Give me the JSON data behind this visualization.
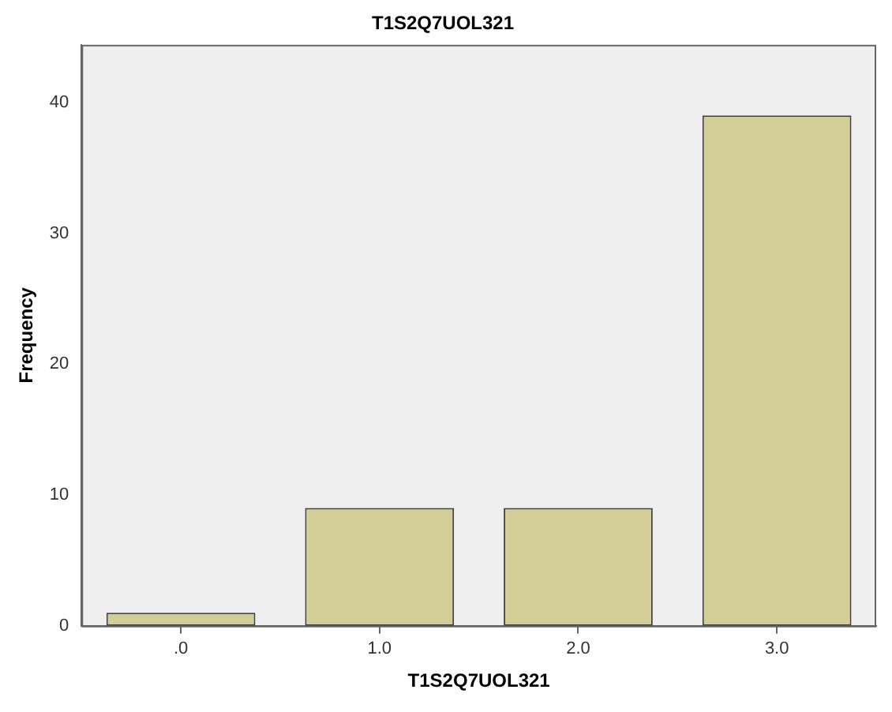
{
  "chart_data": {
    "type": "bar",
    "title": "T1S2Q7UOL321",
    "xlabel": "T1S2Q7UOL321",
    "ylabel": "Frequency",
    "categories": [
      ".0",
      "1.0",
      "2.0",
      "3.0"
    ],
    "values": [
      1,
      9,
      9,
      39
    ],
    "color": "#d3ce97",
    "ylim": [
      0,
      44.4
    ],
    "yticks": [
      0,
      10,
      20,
      30,
      40
    ],
    "grid": false,
    "legend": false
  }
}
